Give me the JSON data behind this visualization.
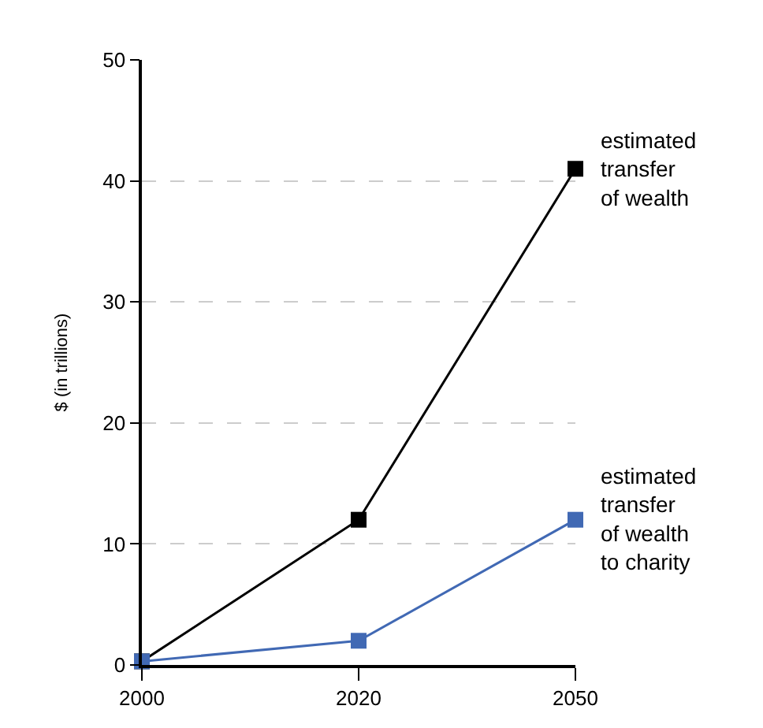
{
  "chart_data": {
    "type": "line",
    "ylabel": "$ (in trillions)",
    "categories": [
      "2000",
      "2020",
      "2050"
    ],
    "series": [
      {
        "name": "estimated\ntransfer\nof wealth",
        "color": "#000000",
        "values": [
          0.3,
          12,
          41
        ]
      },
      {
        "name": "estimated\ntransfer\nof wealth\nto charity",
        "color": "#4169b4",
        "values": [
          0.3,
          2,
          12
        ]
      }
    ],
    "ylim": [
      0,
      50
    ],
    "yticks": [
      0,
      10,
      20,
      30,
      40,
      50
    ],
    "grid": "y",
    "legend": false,
    "marker": "square",
    "line_style": "solid"
  }
}
